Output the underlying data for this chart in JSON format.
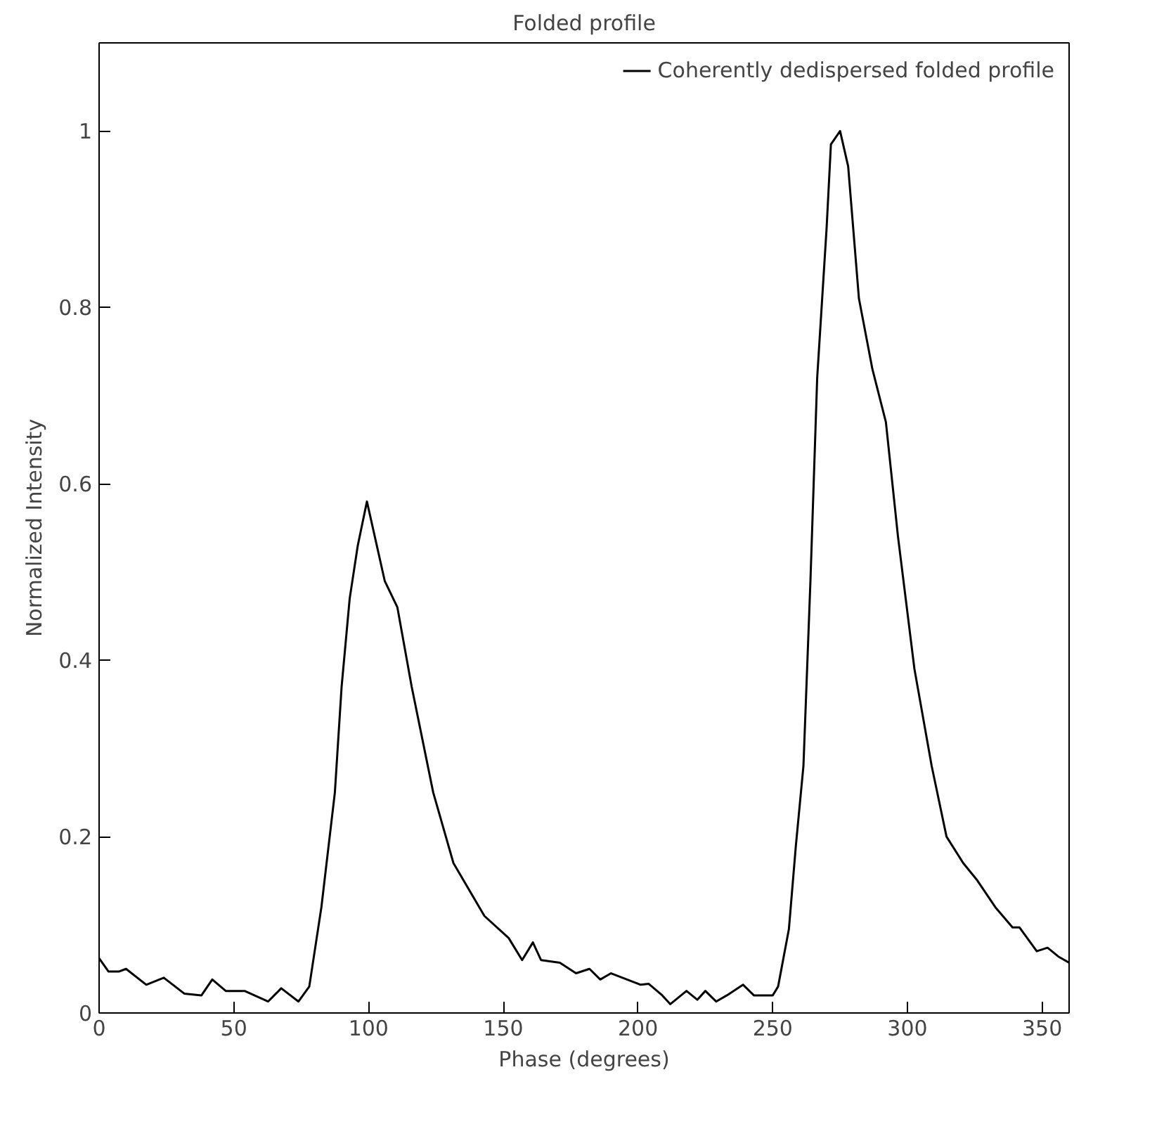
{
  "chart_data": {
    "type": "line",
    "title": "Folded profile",
    "xlabel": "Phase (degrees)",
    "ylabel": "Normalized Intensity",
    "xlim": [
      0,
      360
    ],
    "ylim": [
      0,
      1.1
    ],
    "xticks": [
      0,
      50,
      100,
      150,
      200,
      250,
      300,
      350
    ],
    "yticks": [
      0,
      0.2,
      0.4,
      0.6,
      0.8,
      1
    ],
    "grid": false,
    "legend": "top right",
    "marker": "none",
    "line_style": "solid",
    "series": [
      {
        "name": "Coherently dedispersed folded profile",
        "color": "#000000",
        "x": [
          0,
          3.5,
          7.3,
          10,
          17.5,
          24,
          31.6,
          38,
          42,
          47,
          54,
          62.7,
          67.6,
          74,
          78,
          82.5,
          87.5,
          90,
          93,
          96,
          99.4,
          106,
          110.7,
          116,
          124,
          131.5,
          143,
          152,
          157,
          161,
          164,
          171,
          177,
          182,
          186,
          190,
          201,
          204,
          209,
          212,
          218,
          222,
          225,
          229,
          233,
          239,
          243,
          250,
          252,
          256,
          258.6,
          261.4,
          264,
          266.5,
          270,
          271.6,
          275,
          278,
          282,
          287,
          292,
          296.5,
          302.6,
          309,
          314.5,
          320.7,
          326,
          332.6,
          339,
          341.6,
          348,
          352,
          356,
          360
        ],
        "values": [
          0.062,
          0.047,
          0.047,
          0.05,
          0.032,
          0.04,
          0.022,
          0.02,
          0.038,
          0.025,
          0.025,
          0.013,
          0.028,
          0.013,
          0.03,
          0.12,
          0.25,
          0.37,
          0.47,
          0.53,
          0.58,
          0.49,
          0.46,
          0.37,
          0.25,
          0.17,
          0.11,
          0.085,
          0.06,
          0.08,
          0.06,
          0.057,
          0.045,
          0.05,
          0.038,
          0.045,
          0.032,
          0.033,
          0.02,
          0.01,
          0.025,
          0.015,
          0.025,
          0.013,
          0.02,
          0.032,
          0.02,
          0.02,
          0.03,
          0.095,
          0.19,
          0.28,
          0.49,
          0.72,
          0.89,
          0.985,
          1.0,
          0.96,
          0.81,
          0.73,
          0.67,
          0.54,
          0.39,
          0.28,
          0.2,
          0.17,
          0.15,
          0.12,
          0.097,
          0.097,
          0.07,
          0.074,
          0.064,
          0.057
        ]
      }
    ]
  }
}
